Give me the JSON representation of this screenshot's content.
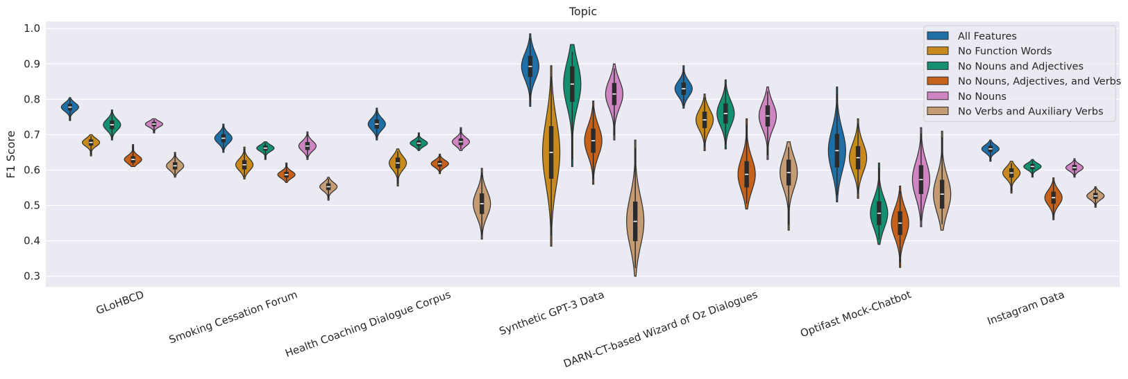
{
  "chart_data": {
    "type": "violin",
    "title": "Topic",
    "ylabel": "F1 Score",
    "xlabel": "",
    "ylim": [
      0.27,
      1.02
    ],
    "yticks": [
      "0.3",
      "0.4",
      "0.5",
      "0.6",
      "0.7",
      "0.8",
      "0.9",
      "1.0"
    ],
    "grid": true,
    "legend_position": "top-right",
    "categories": [
      "GLoHBCD",
      "Smoking Cessation Forum",
      "Health Coaching Dialogue Corpus",
      "Synthetic GPT-3 Data",
      "DARN-CT-based Wizard of Oz Dialogues",
      "Optifast Mock-Chatbot",
      "Instagram Data"
    ],
    "series": [
      {
        "name": "All Features",
        "color": "#1f6fa7",
        "median": [
          0.778,
          0.69,
          0.73,
          0.893,
          0.83,
          0.655,
          0.66
        ],
        "min": [
          0.74,
          0.65,
          0.685,
          0.78,
          0.775,
          0.51,
          0.625
        ],
        "max": [
          0.805,
          0.73,
          0.775,
          0.985,
          0.895,
          0.835,
          0.685
        ]
      },
      {
        "name": "No Function Words",
        "color": "#c88a1d",
        "median": [
          0.678,
          0.615,
          0.62,
          0.65,
          0.742,
          0.635,
          0.592
        ],
        "min": [
          0.64,
          0.575,
          0.555,
          0.385,
          0.655,
          0.52,
          0.535
        ],
        "max": [
          0.7,
          0.665,
          0.66,
          0.895,
          0.815,
          0.745,
          0.625
        ]
      },
      {
        "name": "No Nouns and Adjectives",
        "color": "#139070",
        "median": [
          0.728,
          0.662,
          0.676,
          0.843,
          0.76,
          0.478,
          0.61
        ],
        "min": [
          0.685,
          0.63,
          0.655,
          0.61,
          0.66,
          0.39,
          0.58
        ],
        "max": [
          0.77,
          0.68,
          0.705,
          0.955,
          0.855,
          0.62,
          0.63
        ]
      },
      {
        "name": "No Nouns, Adjectives, and Verbs",
        "color": "#c5611b",
        "median": [
          0.63,
          0.587,
          0.618,
          0.683,
          0.588,
          0.45,
          0.522
        ],
        "min": [
          0.61,
          0.565,
          0.59,
          0.56,
          0.49,
          0.325,
          0.46
        ],
        "max": [
          0.672,
          0.62,
          0.645,
          0.795,
          0.745,
          0.555,
          0.578
        ]
      },
      {
        "name": "No Nouns",
        "color": "#cf85c2",
        "median": [
          0.73,
          0.668,
          0.68,
          0.815,
          0.753,
          0.573,
          0.607
        ],
        "min": [
          0.705,
          0.63,
          0.655,
          0.685,
          0.63,
          0.44,
          0.58
        ],
        "max": [
          0.745,
          0.708,
          0.72,
          0.9,
          0.835,
          0.72,
          0.632
        ]
      },
      {
        "name": "No Verbs and Auxiliary Verbs",
        "color": "#c59b74",
        "median": [
          0.612,
          0.553,
          0.505,
          0.455,
          0.593,
          0.532,
          0.527
        ],
        "min": [
          0.58,
          0.515,
          0.405,
          0.3,
          0.43,
          0.43,
          0.495
        ],
        "max": [
          0.65,
          0.58,
          0.605,
          0.685,
          0.68,
          0.71,
          0.553
        ]
      }
    ]
  }
}
